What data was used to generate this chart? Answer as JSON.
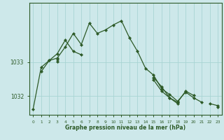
{
  "title": "Graphe pression niveau de la mer (hPa)",
  "bg_color": "#cde8ea",
  "line_color": "#2d5a27",
  "grid_color": "#a8d4d4",
  "axis_color": "#2d5a27",
  "xlim": [
    -0.5,
    23.5
  ],
  "ylim": [
    1031.45,
    1034.75
  ],
  "yticks": [
    1032,
    1033
  ],
  "xticks": [
    0,
    1,
    2,
    3,
    4,
    5,
    6,
    7,
    8,
    9,
    10,
    11,
    12,
    13,
    14,
    15,
    16,
    17,
    18,
    19,
    20,
    21,
    22,
    23
  ],
  "series": [
    [
      1031.62,
      1032.85,
      1033.05,
      1033.12,
      1033.45,
      1033.85,
      1033.52,
      1034.15,
      1033.85,
      1033.95,
      1034.1,
      1034.22,
      1033.72,
      1033.32,
      1032.82,
      1032.62,
      1032.22,
      1032.05,
      1031.85,
      1032.12,
      1031.95,
      1031.82,
      null,
      null
    ],
    [
      null,
      1032.72,
      1033.05,
      1033.25,
      1033.65,
      1033.32,
      1033.22,
      null,
      null,
      null,
      null,
      null,
      null,
      null,
      null,
      null,
      null,
      null,
      null,
      null,
      null,
      null,
      null,
      null
    ],
    [
      null,
      null,
      null,
      1033.08,
      null,
      null,
      null,
      null,
      null,
      null,
      null,
      null,
      null,
      null,
      null,
      1032.55,
      1032.28,
      1031.95,
      1031.82,
      1032.15,
      1032.02,
      null,
      1031.78,
      1031.72
    ],
    [
      null,
      null,
      null,
      1033.02,
      null,
      null,
      null,
      null,
      null,
      null,
      null,
      null,
      null,
      null,
      null,
      1032.48,
      1032.15,
      1031.95,
      1031.78,
      null,
      null,
      null,
      null,
      1031.68
    ]
  ]
}
